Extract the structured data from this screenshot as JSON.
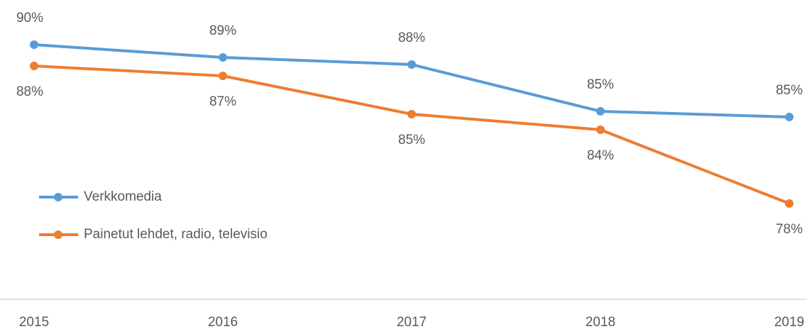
{
  "chart_data": {
    "type": "line",
    "x": [
      "2015",
      "2016",
      "2017",
      "2018",
      "2019"
    ],
    "series": [
      {
        "name": "Verkkomedia",
        "color": "#5b9bd5",
        "values": [
          89.6,
          88.7,
          88.2,
          84.9,
          84.5
        ],
        "value_labels": [
          "90%",
          "89%",
          "88%",
          "85%",
          "85%"
        ]
      },
      {
        "name": "Painetut lehdet, radio, televisio",
        "color": "#ed7d31",
        "values": [
          88.1,
          87.4,
          84.7,
          83.6,
          78.4
        ],
        "value_labels": [
          "88%",
          "87%",
          "85%",
          "84%",
          "78%"
        ]
      }
    ],
    "ylim": [
      73,
      92
    ],
    "legend": "left"
  }
}
